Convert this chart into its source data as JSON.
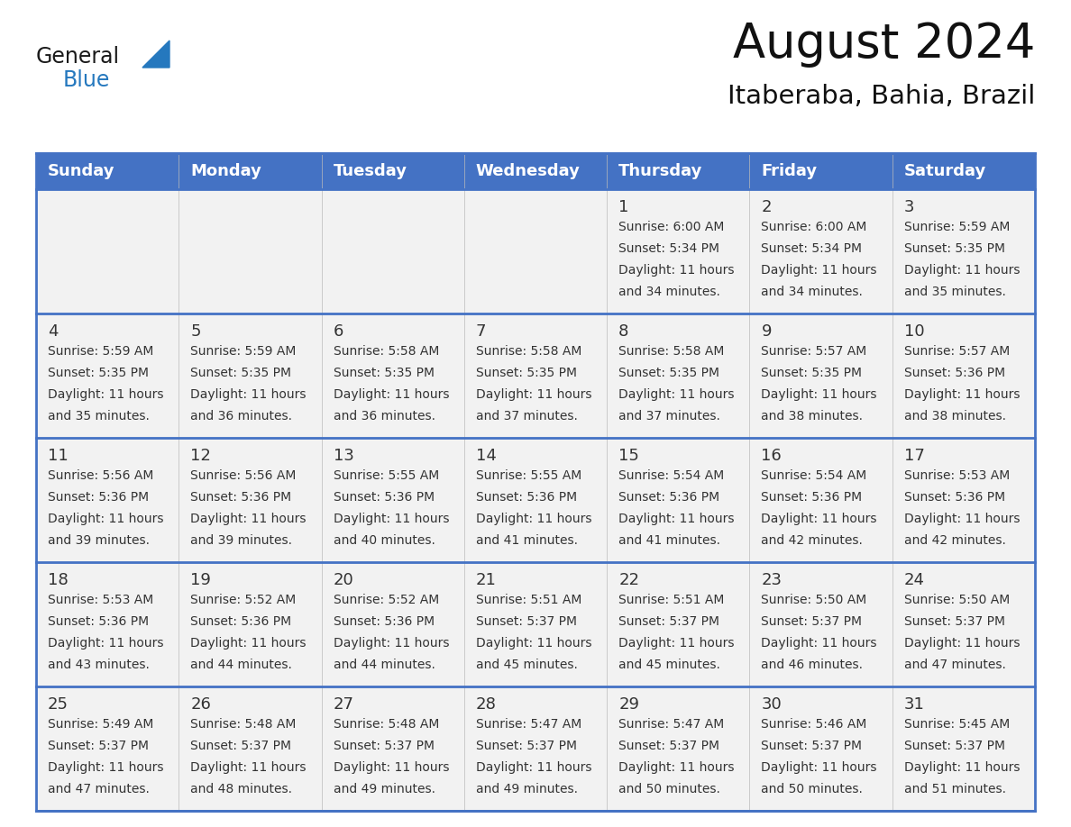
{
  "title": "August 2024",
  "subtitle": "Itaberaba, Bahia, Brazil",
  "header_bg_color": "#4472C4",
  "header_text_color": "#FFFFFF",
  "cell_bg_color": "#F2F2F2",
  "separator_color": "#4472C4",
  "day_names": [
    "Sunday",
    "Monday",
    "Tuesday",
    "Wednesday",
    "Thursday",
    "Friday",
    "Saturday"
  ],
  "days_data": [
    {
      "day": 1,
      "col": 4,
      "row": 0,
      "sunrise": "6:00 AM",
      "sunset": "5:34 PM",
      "daylight_hours": 11,
      "daylight_minutes": 34
    },
    {
      "day": 2,
      "col": 5,
      "row": 0,
      "sunrise": "6:00 AM",
      "sunset": "5:34 PM",
      "daylight_hours": 11,
      "daylight_minutes": 34
    },
    {
      "day": 3,
      "col": 6,
      "row": 0,
      "sunrise": "5:59 AM",
      "sunset": "5:35 PM",
      "daylight_hours": 11,
      "daylight_minutes": 35
    },
    {
      "day": 4,
      "col": 0,
      "row": 1,
      "sunrise": "5:59 AM",
      "sunset": "5:35 PM",
      "daylight_hours": 11,
      "daylight_minutes": 35
    },
    {
      "day": 5,
      "col": 1,
      "row": 1,
      "sunrise": "5:59 AM",
      "sunset": "5:35 PM",
      "daylight_hours": 11,
      "daylight_minutes": 36
    },
    {
      "day": 6,
      "col": 2,
      "row": 1,
      "sunrise": "5:58 AM",
      "sunset": "5:35 PM",
      "daylight_hours": 11,
      "daylight_minutes": 36
    },
    {
      "day": 7,
      "col": 3,
      "row": 1,
      "sunrise": "5:58 AM",
      "sunset": "5:35 PM",
      "daylight_hours": 11,
      "daylight_minutes": 37
    },
    {
      "day": 8,
      "col": 4,
      "row": 1,
      "sunrise": "5:58 AM",
      "sunset": "5:35 PM",
      "daylight_hours": 11,
      "daylight_minutes": 37
    },
    {
      "day": 9,
      "col": 5,
      "row": 1,
      "sunrise": "5:57 AM",
      "sunset": "5:35 PM",
      "daylight_hours": 11,
      "daylight_minutes": 38
    },
    {
      "day": 10,
      "col": 6,
      "row": 1,
      "sunrise": "5:57 AM",
      "sunset": "5:36 PM",
      "daylight_hours": 11,
      "daylight_minutes": 38
    },
    {
      "day": 11,
      "col": 0,
      "row": 2,
      "sunrise": "5:56 AM",
      "sunset": "5:36 PM",
      "daylight_hours": 11,
      "daylight_minutes": 39
    },
    {
      "day": 12,
      "col": 1,
      "row": 2,
      "sunrise": "5:56 AM",
      "sunset": "5:36 PM",
      "daylight_hours": 11,
      "daylight_minutes": 39
    },
    {
      "day": 13,
      "col": 2,
      "row": 2,
      "sunrise": "5:55 AM",
      "sunset": "5:36 PM",
      "daylight_hours": 11,
      "daylight_minutes": 40
    },
    {
      "day": 14,
      "col": 3,
      "row": 2,
      "sunrise": "5:55 AM",
      "sunset": "5:36 PM",
      "daylight_hours": 11,
      "daylight_minutes": 41
    },
    {
      "day": 15,
      "col": 4,
      "row": 2,
      "sunrise": "5:54 AM",
      "sunset": "5:36 PM",
      "daylight_hours": 11,
      "daylight_minutes": 41
    },
    {
      "day": 16,
      "col": 5,
      "row": 2,
      "sunrise": "5:54 AM",
      "sunset": "5:36 PM",
      "daylight_hours": 11,
      "daylight_minutes": 42
    },
    {
      "day": 17,
      "col": 6,
      "row": 2,
      "sunrise": "5:53 AM",
      "sunset": "5:36 PM",
      "daylight_hours": 11,
      "daylight_minutes": 42
    },
    {
      "day": 18,
      "col": 0,
      "row": 3,
      "sunrise": "5:53 AM",
      "sunset": "5:36 PM",
      "daylight_hours": 11,
      "daylight_minutes": 43
    },
    {
      "day": 19,
      "col": 1,
      "row": 3,
      "sunrise": "5:52 AM",
      "sunset": "5:36 PM",
      "daylight_hours": 11,
      "daylight_minutes": 44
    },
    {
      "day": 20,
      "col": 2,
      "row": 3,
      "sunrise": "5:52 AM",
      "sunset": "5:36 PM",
      "daylight_hours": 11,
      "daylight_minutes": 44
    },
    {
      "day": 21,
      "col": 3,
      "row": 3,
      "sunrise": "5:51 AM",
      "sunset": "5:37 PM",
      "daylight_hours": 11,
      "daylight_minutes": 45
    },
    {
      "day": 22,
      "col": 4,
      "row": 3,
      "sunrise": "5:51 AM",
      "sunset": "5:37 PM",
      "daylight_hours": 11,
      "daylight_minutes": 45
    },
    {
      "day": 23,
      "col": 5,
      "row": 3,
      "sunrise": "5:50 AM",
      "sunset": "5:37 PM",
      "daylight_hours": 11,
      "daylight_minutes": 46
    },
    {
      "day": 24,
      "col": 6,
      "row": 3,
      "sunrise": "5:50 AM",
      "sunset": "5:37 PM",
      "daylight_hours": 11,
      "daylight_minutes": 47
    },
    {
      "day": 25,
      "col": 0,
      "row": 4,
      "sunrise": "5:49 AM",
      "sunset": "5:37 PM",
      "daylight_hours": 11,
      "daylight_minutes": 47
    },
    {
      "day": 26,
      "col": 1,
      "row": 4,
      "sunrise": "5:48 AM",
      "sunset": "5:37 PM",
      "daylight_hours": 11,
      "daylight_minutes": 48
    },
    {
      "day": 27,
      "col": 2,
      "row": 4,
      "sunrise": "5:48 AM",
      "sunset": "5:37 PM",
      "daylight_hours": 11,
      "daylight_minutes": 49
    },
    {
      "day": 28,
      "col": 3,
      "row": 4,
      "sunrise": "5:47 AM",
      "sunset": "5:37 PM",
      "daylight_hours": 11,
      "daylight_minutes": 49
    },
    {
      "day": 29,
      "col": 4,
      "row": 4,
      "sunrise": "5:47 AM",
      "sunset": "5:37 PM",
      "daylight_hours": 11,
      "daylight_minutes": 50
    },
    {
      "day": 30,
      "col": 5,
      "row": 4,
      "sunrise": "5:46 AM",
      "sunset": "5:37 PM",
      "daylight_hours": 11,
      "daylight_minutes": 50
    },
    {
      "day": 31,
      "col": 6,
      "row": 4,
      "sunrise": "5:45 AM",
      "sunset": "5:37 PM",
      "daylight_hours": 11,
      "daylight_minutes": 51
    }
  ],
  "logo_general_color": "#1a1a1a",
  "logo_blue_color": "#2578BE",
  "logo_triangle_color": "#2578BE",
  "title_fontsize": 38,
  "subtitle_fontsize": 21,
  "header_fontsize": 13,
  "day_number_fontsize": 13,
  "cell_text_fontsize": 10
}
